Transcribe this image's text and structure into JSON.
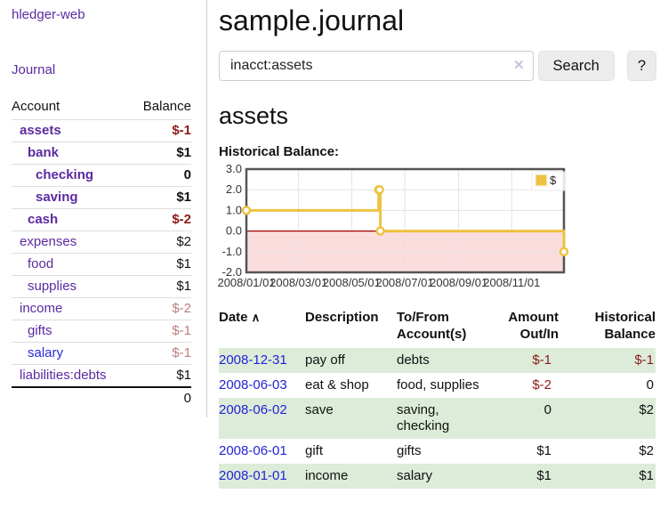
{
  "sidebar": {
    "brand": "hledger-web",
    "nav_journal": "Journal",
    "accounts_table": {
      "headers": [
        "Account",
        "Balance"
      ],
      "rows": [
        {
          "name": "assets",
          "depth": 1,
          "balance": "$-1",
          "bold": true,
          "name_color": "purple",
          "balance_class": "neg-strong"
        },
        {
          "name": "bank",
          "depth": 2,
          "balance": "$1",
          "bold": true,
          "name_color": "purple",
          "balance_class": "plain"
        },
        {
          "name": "checking",
          "depth": 3,
          "balance": "0",
          "bold": true,
          "name_color": "purple",
          "balance_class": "plain"
        },
        {
          "name": "saving",
          "depth": 3,
          "balance": "$1",
          "bold": true,
          "name_color": "purple",
          "balance_class": "plain"
        },
        {
          "name": "cash",
          "depth": 2,
          "balance": "$-2",
          "bold": true,
          "name_color": "purple",
          "balance_class": "neg-strong"
        },
        {
          "name": "expenses",
          "depth": 1,
          "balance": "$2",
          "bold": false,
          "name_color": "purple",
          "balance_class": "plain"
        },
        {
          "name": "food",
          "depth": 2,
          "balance": "$1",
          "bold": false,
          "name_color": "purple",
          "balance_class": "plain"
        },
        {
          "name": "supplies",
          "depth": 2,
          "balance": "$1",
          "bold": false,
          "name_color": "purple",
          "balance_class": "plain"
        },
        {
          "name": "income",
          "depth": 1,
          "balance": "$-2",
          "bold": false,
          "name_color": "purple",
          "balance_class": "neg-muted"
        },
        {
          "name": "gifts",
          "depth": 2,
          "balance": "$-1",
          "bold": false,
          "name_color": "purple",
          "balance_class": "neg-muted"
        },
        {
          "name": "salary",
          "depth": 2,
          "balance": "$-1",
          "bold": false,
          "name_color": "blue",
          "balance_class": "neg-muted"
        },
        {
          "name": "liabilities:debts",
          "depth": 1,
          "balance": "$1",
          "bold": false,
          "name_color": "purple",
          "balance_class": "plain"
        }
      ],
      "total": "0"
    }
  },
  "main": {
    "title": "sample.journal",
    "search": {
      "value": "inacct:assets",
      "clear_icon": "✕",
      "search_button": "Search",
      "help_button": "?"
    },
    "account_heading": "assets",
    "chart_heading": "Historical Balance:"
  },
  "chart_data": {
    "type": "line",
    "subtype": "step",
    "title": "Historical Balance of assets",
    "series": [
      {
        "name": "$",
        "points": [
          {
            "date": "2008-01-01",
            "value": 1
          },
          {
            "date": "2008-06-01",
            "value": 2
          },
          {
            "date": "2008-06-02",
            "value": 2
          },
          {
            "date": "2008-06-03",
            "value": 0
          },
          {
            "date": "2008-12-31",
            "value": -1
          }
        ]
      }
    ],
    "x_range": [
      "2008-01-01",
      "2008-12-31"
    ],
    "x_ticks": [
      {
        "date": "2008-01-01",
        "label": "2008/01/01"
      },
      {
        "date": "2008-03-01",
        "label": "2008/03/01"
      },
      {
        "date": "2008-05-01",
        "label": "2008/05/01"
      },
      {
        "date": "2008-07-01",
        "label": "2008/07/01"
      },
      {
        "date": "2008-09-01",
        "label": "2008/09/01"
      },
      {
        "date": "2008-11-01",
        "label": "2008/11/01"
      }
    ],
    "y_ticks": [
      {
        "v": 3,
        "label": "3.0"
      },
      {
        "v": 2,
        "label": "2.0"
      },
      {
        "v": 1,
        "label": "1.0"
      },
      {
        "v": 0,
        "label": "0.0"
      },
      {
        "v": -1,
        "label": "-1.0"
      },
      {
        "v": -2,
        "label": "-2.0"
      }
    ],
    "ylim": [
      -2,
      3
    ],
    "grid": true,
    "legend_position": "top-right",
    "colors": {
      "line": "#edc240",
      "marker_fill": "#ffffff",
      "negative_fill": "#fbdddd",
      "zero_line": "#a40000",
      "border": "#545454",
      "gridline": "#e3e3e3",
      "tick_text": "#333333"
    }
  },
  "register_table": {
    "headers": {
      "date": "Date",
      "sort_icon": "∧",
      "description": "Description",
      "accounts_line1": "To/From",
      "accounts_line2": "Account(s)",
      "amount_line1": "Amount",
      "amount_line2": "Out/In",
      "balance_line1": "Historical",
      "balance_line2": "Balance"
    },
    "rows": [
      {
        "date": "2008-12-31",
        "description": "pay off",
        "accounts": "debts",
        "amount": "$-1",
        "amount_negative": true,
        "balance": "$-1",
        "balance_negative": true
      },
      {
        "date": "2008-06-03",
        "description": "eat & shop",
        "accounts": "food, supplies",
        "amount": "$-2",
        "amount_negative": true,
        "balance": "0",
        "balance_negative": false
      },
      {
        "date": "2008-06-02",
        "description": "save",
        "accounts": "saving, checking",
        "amount": "0",
        "amount_negative": false,
        "balance": "$2",
        "balance_negative": false
      },
      {
        "date": "2008-06-01",
        "description": "gift",
        "accounts": "gifts",
        "amount": "$1",
        "amount_negative": false,
        "balance": "$2",
        "balance_negative": false
      },
      {
        "date": "2008-01-01",
        "description": "income",
        "accounts": "salary",
        "amount": "$1",
        "amount_negative": false,
        "balance": "$1",
        "balance_negative": false
      }
    ]
  },
  "colors": {
    "purple_link": "#5b2aa0",
    "blue_link": "#2a2ad6",
    "negative_strong": "#8f1a1a",
    "negative_muted": "#bc7d7d",
    "row_green": "#dcecd9"
  }
}
